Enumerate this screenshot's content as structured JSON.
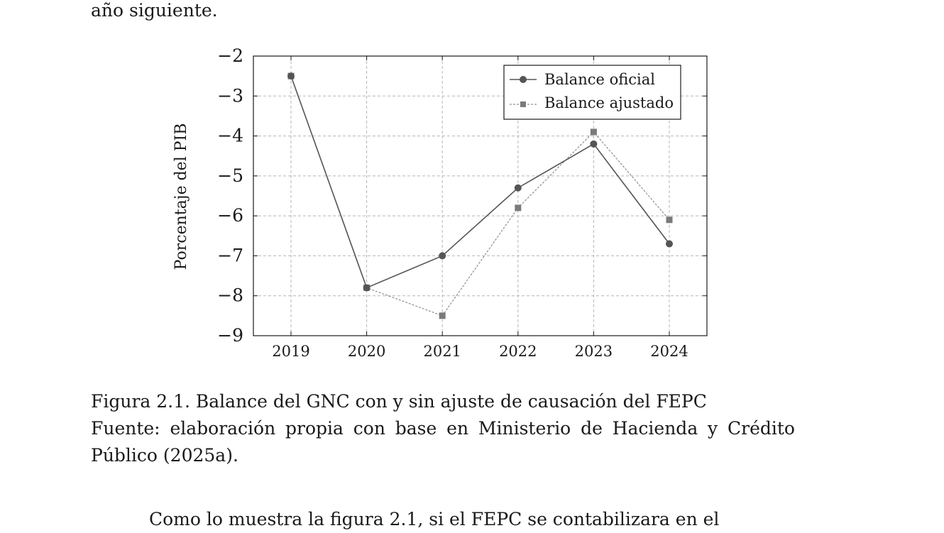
{
  "body_text": {
    "top_fragment": "año siguiente.",
    "bottom_fragment": "Como lo muestra la figura 2.1, si el FEPC se contabilizara en el"
  },
  "caption": {
    "figure": "Figura 2.1. Balance del GNC con y sin ajuste de causación del FEPC",
    "source_line1": "Fuente: elaboración propia con base en Ministerio de Hacienda y Crédito",
    "source_line2": "Público (2025a)."
  },
  "chart_data": {
    "type": "line",
    "x": [
      2019,
      2020,
      2021,
      2022,
      2023,
      2024
    ],
    "series": [
      {
        "name": "Balance oficial",
        "values": [
          -2.5,
          -7.8,
          -7.0,
          -5.3,
          -4.2,
          -6.7
        ],
        "marker": "circle",
        "line": "solid",
        "color": "#555555"
      },
      {
        "name": "Balance ajustado",
        "values": [
          -2.5,
          -7.8,
          -8.5,
          -5.8,
          -3.9,
          -6.1
        ],
        "marker": "square",
        "line": "dashed",
        "color": "#7a7a7a"
      }
    ],
    "ylabel": "Porcentaje del PIB",
    "xlabel": "",
    "ylim": [
      -9,
      -2
    ],
    "yticks": [
      "−2",
      "−3",
      "−4",
      "−5",
      "−6",
      "−7",
      "−8",
      "−9"
    ],
    "xticks": [
      "2019",
      "2020",
      "2021",
      "2022",
      "2023",
      "2024"
    ],
    "grid": true,
    "legend_position": "top-right"
  }
}
